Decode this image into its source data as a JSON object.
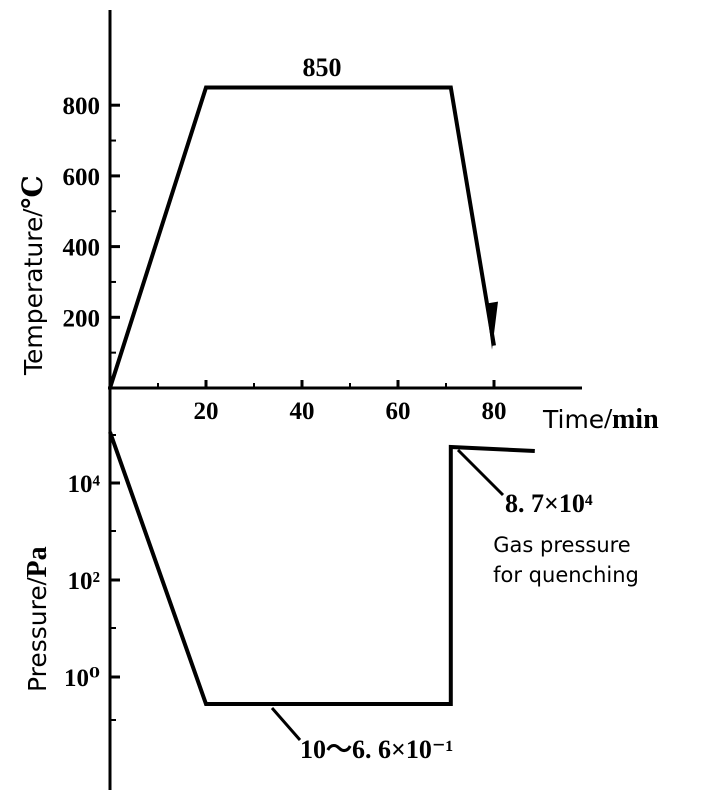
{
  "chart_data": [
    {
      "type": "line",
      "title": "",
      "xlabel": "Time/min",
      "ylabel": "Temperature /℃",
      "xlim": [
        0,
        90
      ],
      "ylim": [
        0,
        900
      ],
      "x_ticks": [
        "20",
        "40",
        "60",
        "80"
      ],
      "y_ticks": [
        "200",
        "400",
        "600",
        "800"
      ],
      "series": [
        {
          "x": [
            0,
            20,
            71,
            80
          ],
          "y": [
            0,
            850,
            850,
            120
          ]
        }
      ],
      "annotations": [
        "850"
      ]
    },
    {
      "type": "line",
      "title": "",
      "xlabel": "",
      "ylabel": "Pressure /Pa",
      "y_scale": "log",
      "y_ticks": [
        "10⁴",
        "10²",
        "10⁰"
      ],
      "series": [
        {
          "x": [
            0,
            20,
            71,
            71,
            90
          ],
          "y_label": [
            "~10⁵",
            "10~6.6×10⁻¹",
            "10~6.6×10⁻¹",
            "8.7×10⁴",
            "8.7×10⁴"
          ]
        }
      ],
      "annotations": [
        "10～6. 6×10⁻¹",
        "8. 7×10⁴",
        "Gas pressure",
        "for quenching"
      ]
    }
  ],
  "labels": {
    "peak": "850",
    "x_unit_word": "Time",
    "x_unit": "/min",
    "temp_word": "Temperature",
    "temp_unit": "/℃",
    "press_word": "Pressure",
    "press_unit": "/Pa",
    "vacuum_note": "10～6. 6×10⁻¹",
    "gas_value": "8. 7×10⁴",
    "gas_note_1": "Gas pressure",
    "gas_note_2": "for quenching"
  }
}
